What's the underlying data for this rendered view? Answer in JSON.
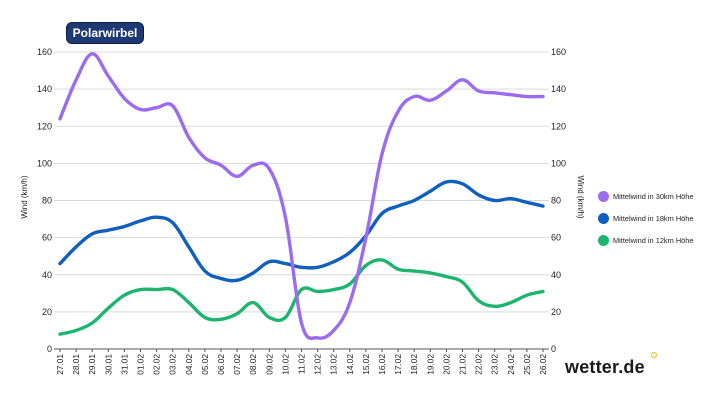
{
  "badge": "Polarwirbel",
  "brand": "wetter.de",
  "chart_data": {
    "type": "line",
    "ylabel_left": "Wind (km/h)",
    "ylabel_right": "Wind (km/h)",
    "ylim": [
      0,
      160
    ],
    "yticks": [
      0,
      20,
      40,
      60,
      80,
      100,
      120,
      140,
      160
    ],
    "categories": [
      "27.01",
      "28.01",
      "29.01",
      "30.01",
      "31.01",
      "01.02",
      "02.02",
      "03.02",
      "04.02",
      "05.02",
      "06.02",
      "07.02",
      "08.02",
      "09.02",
      "10.02",
      "11.02",
      "12.02",
      "13.02",
      "14.02",
      "15.02",
      "16.02",
      "17.02",
      "18.02",
      "19.02",
      "20.02",
      "21.02",
      "22.02",
      "23.02",
      "24.02",
      "25.02",
      "26.02"
    ],
    "series": [
      {
        "name": "Mittelwind in 30km Höhe",
        "color": "#9b6cf0",
        "values": [
          124,
          145,
          159,
          147,
          135,
          129,
          130,
          131,
          114,
          103,
          99,
          93,
          99,
          97,
          71,
          14,
          6,
          10,
          25,
          60,
          105,
          128,
          136,
          134,
          139,
          145,
          139,
          138,
          137,
          136,
          136
        ]
      },
      {
        "name": "Mittelwind in 18km Höhe",
        "color": "#0f5fc0",
        "values": [
          46,
          55,
          62,
          64,
          66,
          69,
          71,
          68,
          55,
          42,
          38,
          37,
          41,
          47,
          46,
          44,
          44,
          47,
          52,
          61,
          73,
          77,
          80,
          85,
          90,
          89,
          83,
          80,
          81,
          79,
          77
        ]
      },
      {
        "name": "Mittelwind in 12km Höhe",
        "color": "#1db46e",
        "values": [
          8,
          10,
          14,
          22,
          29,
          32,
          32,
          32,
          25,
          17,
          16,
          19,
          25,
          17,
          17,
          32,
          31,
          32,
          35,
          45,
          48,
          43,
          42,
          41,
          39,
          36,
          26,
          23,
          25,
          29,
          31
        ]
      }
    ]
  }
}
